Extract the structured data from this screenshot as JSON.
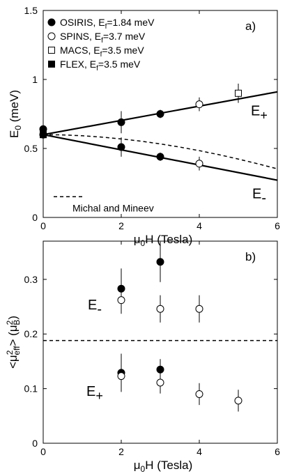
{
  "chart_data": [
    {
      "panel_label": "a)",
      "type": "scatter",
      "xlabel": "μ0H (Tesla)",
      "ylabel": "E0 (meV)",
      "xlim": [
        0,
        6
      ],
      "ylim": [
        0,
        1.5
      ],
      "xticks": [
        0,
        2,
        4,
        6
      ],
      "yticks": [
        0,
        0.5,
        1,
        1.5
      ],
      "ytick_labels": [
        "0",
        "0.5",
        "1",
        "1.5"
      ],
      "grid": false,
      "legend_position": "top-left",
      "legend": [
        {
          "label": "OSIRIS, E",
          "sub": "f",
          "suffix": "=1.84 meV",
          "marker": "filled-circle"
        },
        {
          "label": "SPINS, E",
          "sub": "f",
          "suffix": "=3.7 meV",
          "marker": "open-circle"
        },
        {
          "label": "MACS, E",
          "sub": "f",
          "suffix": "=3.5 meV",
          "marker": "open-square"
        },
        {
          "label": "FLEX, E",
          "sub": "f",
          "suffix": "=3.5 meV",
          "marker": "filled-square"
        }
      ],
      "series": [
        {
          "name": "OSIRIS, Ef=1.84 meV",
          "marker": "filled-circle",
          "points": [
            {
              "x": 0,
              "y": 0.64
            },
            {
              "x": 0,
              "y": 0.6
            },
            {
              "x": 2,
              "y": 0.69
            },
            {
              "x": 3,
              "y": 0.75
            },
            {
              "x": 2,
              "y": 0.51
            },
            {
              "x": 3,
              "y": 0.44
            }
          ],
          "errors": [
            0,
            0,
            0.08,
            0.03,
            0.07,
            0.03
          ]
        },
        {
          "name": "SPINS, Ef=3.7 meV",
          "marker": "open-circle",
          "points": [
            {
              "x": 4,
              "y": 0.82
            },
            {
              "x": 4,
              "y": 0.39
            }
          ],
          "errors": [
            0.05,
            0.05
          ]
        },
        {
          "name": "MACS, Ef=3.5 meV",
          "marker": "open-square",
          "points": [
            {
              "x": 5,
              "y": 0.9
            }
          ],
          "errors": [
            0.07
          ]
        },
        {
          "name": "FLEX, Ef=3.5 meV",
          "marker": "filled-square",
          "points": [
            {
              "x": 0,
              "y": 0.6
            }
          ],
          "errors": [
            0
          ]
        }
      ],
      "lines": [
        {
          "name": "E+",
          "style": "solid",
          "x": [
            0,
            6
          ],
          "y": [
            0.6,
            0.91
          ]
        },
        {
          "name": "E-",
          "style": "solid",
          "x": [
            0,
            6
          ],
          "y": [
            0.6,
            0.27
          ]
        },
        {
          "name": "Michal and Mineev",
          "style": "dashed",
          "x": [
            0,
            0.5,
            1,
            1.5,
            2,
            2.5,
            3,
            3.5,
            4,
            4.5,
            5,
            5.5,
            6
          ],
          "y": [
            0.6,
            0.598,
            0.592,
            0.582,
            0.569,
            0.553,
            0.533,
            0.51,
            0.484,
            0.455,
            0.423,
            0.389,
            0.352
          ]
        }
      ],
      "annotations": {
        "e_plus": "E+",
        "e_minus": "E-",
        "note": "Michal and Mineev"
      }
    },
    {
      "panel_label": "b)",
      "type": "scatter",
      "xlabel": "μ0H (Tesla)",
      "ylabel": "<μ²eff> (μ²B)",
      "xlim": [
        0,
        6
      ],
      "ylim": [
        0,
        0.37
      ],
      "xticks": [
        0,
        2,
        4,
        6
      ],
      "yticks": [
        0,
        0.1,
        0.2,
        0.3
      ],
      "ytick_labels": [
        "0",
        "0.1",
        "0.2",
        "0.3"
      ],
      "grid": false,
      "series": [
        {
          "name": "OSIRIS E-",
          "marker": "filled-circle",
          "points": [
            {
              "x": 2,
              "y": 0.283
            },
            {
              "x": 3,
              "y": 0.332
            }
          ],
          "errors": [
            0.037,
            0.037
          ]
        },
        {
          "name": "SPINS E-",
          "marker": "open-circle",
          "points": [
            {
              "x": 2,
              "y": 0.262
            },
            {
              "x": 3,
              "y": 0.246
            },
            {
              "x": 4,
              "y": 0.246
            }
          ],
          "errors": [
            0.025,
            0.025,
            0.025
          ]
        },
        {
          "name": "OSIRIS E+",
          "marker": "filled-circle",
          "points": [
            {
              "x": 2,
              "y": 0.129
            },
            {
              "x": 3,
              "y": 0.135
            }
          ],
          "errors": [
            0.035,
            0.019
          ]
        },
        {
          "name": "SPINS E+",
          "marker": "open-circle",
          "points": [
            {
              "x": 2,
              "y": 0.123
            },
            {
              "x": 3,
              "y": 0.111
            },
            {
              "x": 4,
              "y": 0.09
            },
            {
              "x": 5,
              "y": 0.078
            }
          ],
          "errors": [
            0.02,
            0.02,
            0.02,
            0.02
          ]
        }
      ],
      "lines": [
        {
          "style": "dashed",
          "x": [
            0,
            6
          ],
          "y": [
            0.188,
            0.188
          ]
        }
      ],
      "annotations": {
        "e_minus": "E-",
        "e_plus": "E+"
      }
    }
  ]
}
